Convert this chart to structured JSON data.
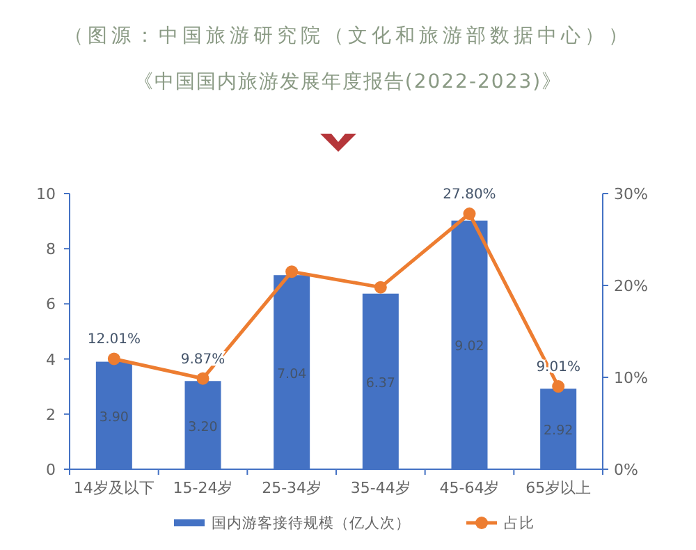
{
  "chart_data": {
    "type": "bar",
    "title": "《中国国内旅游发展年度报告(2022-2023)》",
    "annotations": [
      "（图源：中国旅游研究院（文化和旅游部数据中心））"
    ],
    "categories": [
      "14岁及以下",
      "15-24岁",
      "25-34岁",
      "35-44岁",
      "45-64岁",
      "65岁以上"
    ],
    "series": [
      {
        "name": "国内游客接待规模（亿人次）",
        "color": "#4472c4",
        "values": [
          3.9,
          3.2,
          7.04,
          6.37,
          9.02,
          2.92
        ],
        "value_labels": [
          "3.90",
          "3.20",
          "7.04",
          "6.37",
          "9.02",
          "2.92"
        ]
      },
      {
        "name": "占比",
        "type": "line",
        "axis": "y2",
        "color": "#ed7d31",
        "marker": "circle",
        "values": [
          12.01,
          9.87,
          21.5,
          19.8,
          27.8,
          9.01
        ],
        "value_labels": [
          "12.01%",
          "9.87%",
          null,
          null,
          "27.80%",
          "9.01%"
        ]
      }
    ],
    "ylim": [
      0,
      10
    ],
    "yticks": [
      0,
      2,
      4,
      6,
      8,
      10
    ],
    "y2lim": [
      0,
      30
    ],
    "y2ticks": [
      {
        "value": 0,
        "label": "0%"
      },
      {
        "value": 10,
        "label": "10%"
      },
      {
        "value": 20,
        "label": "20%"
      },
      {
        "value": 30,
        "label": "30%"
      }
    ],
    "grid": false,
    "legend": "bottom"
  }
}
